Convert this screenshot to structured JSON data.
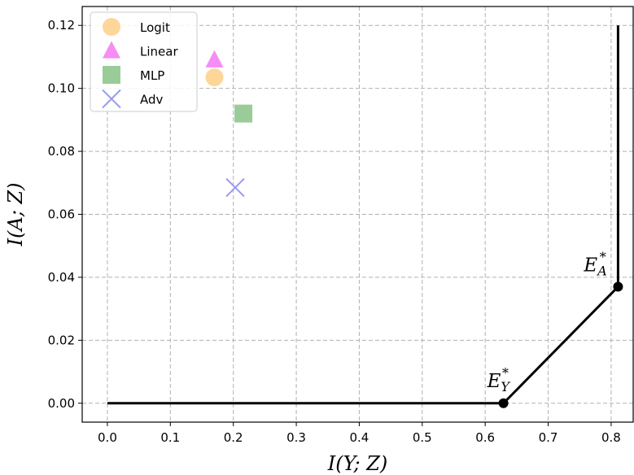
{
  "chart_data": {
    "type": "scatter",
    "xlabel": "I(Y; Z)",
    "ylabel": "I(A; Z)",
    "xlim": [
      -0.04,
      0.835
    ],
    "ylim": [
      -0.006,
      0.126
    ],
    "grid": true,
    "legend_position": "top-left",
    "xticks": [
      0.0,
      0.1,
      0.2,
      0.3,
      0.4,
      0.5,
      0.6,
      0.7,
      0.8
    ],
    "xtick_labels": [
      "0.0",
      "0.1",
      "0.2",
      "0.3",
      "0.4",
      "0.5",
      "0.6",
      "0.7",
      "0.8"
    ],
    "yticks": [
      0.0,
      0.02,
      0.04,
      0.06,
      0.08,
      0.1,
      0.12
    ],
    "ytick_labels": [
      "0.00",
      "0.02",
      "0.04",
      "0.06",
      "0.08",
      "0.10",
      "0.12"
    ],
    "series": [
      {
        "name": "Logit",
        "marker": "circle",
        "color": "#ffd699",
        "x": [
          0.17
        ],
        "y": [
          0.1035
        ]
      },
      {
        "name": "Linear",
        "marker": "triangle",
        "color": "#f68cf6",
        "x": [
          0.17
        ],
        "y": [
          0.109
        ]
      },
      {
        "name": "MLP",
        "marker": "square",
        "color": "#99cc99",
        "x": [
          0.216
        ],
        "y": [
          0.092
        ]
      },
      {
        "name": "Adv",
        "marker": "x",
        "color": "#9999f0",
        "x": [
          0.203
        ],
        "y": [
          0.0685
        ]
      }
    ],
    "frontier": {
      "color": "#000000",
      "x": [
        0.0,
        0.629,
        0.811,
        0.811
      ],
      "y": [
        0.0,
        0.0,
        0.037,
        0.12
      ]
    },
    "annotations": [
      {
        "base": "E",
        "sub": "Y",
        "sup": "*",
        "x": 0.629,
        "y": 0.0
      },
      {
        "base": "E",
        "sub": "A",
        "sup": "*",
        "x": 0.811,
        "y": 0.037
      }
    ]
  }
}
